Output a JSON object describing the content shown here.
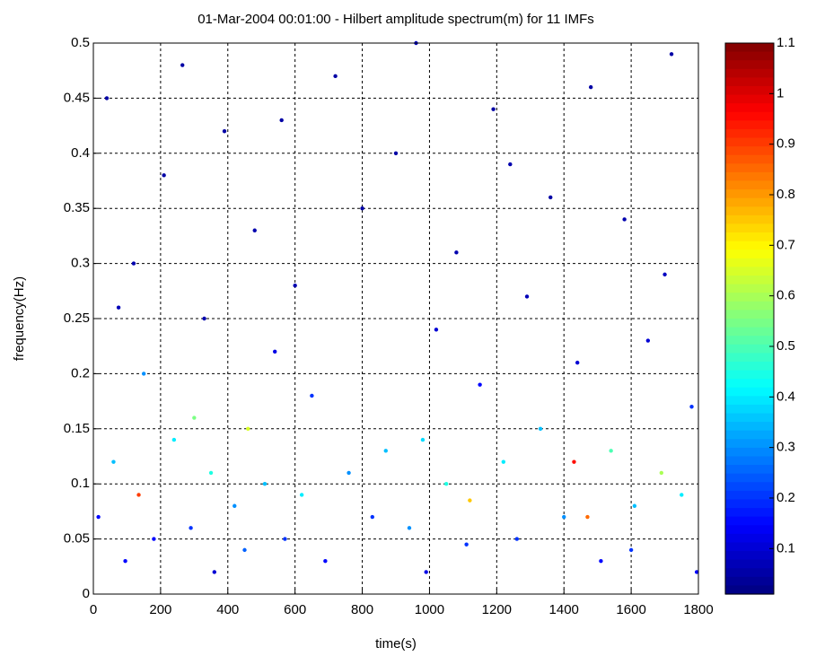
{
  "chart_data": {
    "type": "scatter",
    "title": "01-Mar-2004 00:01:00 - Hilbert amplitude spectrum(m) for 11 IMFs",
    "xlabel": "time(s)",
    "ylabel": "frequency(Hz)",
    "x": [
      15,
      40,
      60,
      95,
      120,
      135,
      150,
      180,
      210,
      240,
      265,
      290,
      300,
      330,
      360,
      390,
      420,
      450,
      460,
      480,
      510,
      540,
      570,
      600,
      620,
      650,
      690,
      720,
      760,
      800,
      830,
      870,
      900,
      940,
      960,
      990,
      1020,
      1050,
      1080,
      1110,
      1120,
      1150,
      1190,
      1220,
      1260,
      1290,
      1330,
      1360,
      1400,
      1430,
      1440,
      1470,
      1480,
      1510,
      1540,
      1580,
      1610,
      1650,
      1690,
      1720,
      1750,
      1780,
      1795,
      75,
      350,
      560,
      980,
      1240,
      1600,
      1700
    ],
    "y": [
      0.07,
      0.45,
      0.12,
      0.03,
      0.3,
      0.09,
      0.2,
      0.05,
      0.38,
      0.14,
      0.48,
      0.06,
      0.16,
      0.25,
      0.02,
      0.42,
      0.08,
      0.04,
      0.15,
      0.33,
      0.1,
      0.22,
      0.05,
      0.28,
      0.09,
      0.18,
      0.03,
      0.47,
      0.11,
      0.35,
      0.07,
      0.13,
      0.4,
      0.06,
      0.5,
      0.02,
      0.24,
      0.1,
      0.31,
      0.045,
      0.085,
      0.19,
      0.44,
      0.12,
      0.05,
      0.27,
      0.15,
      0.36,
      0.07,
      0.12,
      0.21,
      0.07,
      0.46,
      0.03,
      0.13,
      0.34,
      0.08,
      0.23,
      0.11,
      0.49,
      0.09,
      0.17,
      0.02,
      0.26,
      0.11,
      0.43,
      0.14,
      0.39,
      0.04,
      0.29
    ],
    "amplitude": [
      0.15,
      0.05,
      0.35,
      0.15,
      0.06,
      0.9,
      0.3,
      0.15,
      0.05,
      0.4,
      0.05,
      0.2,
      0.55,
      0.06,
      0.1,
      0.05,
      0.3,
      0.25,
      0.65,
      0.06,
      0.35,
      0.12,
      0.2,
      0.06,
      0.4,
      0.2,
      0.15,
      0.05,
      0.3,
      0.05,
      0.2,
      0.35,
      0.05,
      0.3,
      0.08,
      0.12,
      0.1,
      0.45,
      0.06,
      0.2,
      0.75,
      0.15,
      0.05,
      0.4,
      0.2,
      0.07,
      0.35,
      0.05,
      0.3,
      0.95,
      0.1,
      0.85,
      0.05,
      0.15,
      0.5,
      0.06,
      0.35,
      0.1,
      0.6,
      0.05,
      0.4,
      0.2,
      0.15,
      0.07,
      0.45,
      0.05,
      0.38,
      0.06,
      0.2,
      0.08
    ],
    "xlim": [
      0,
      1800
    ],
    "ylim": [
      0,
      0.5
    ],
    "xticks": [
      0,
      200,
      400,
      600,
      800,
      1000,
      1200,
      1400,
      1600,
      1800
    ],
    "yticks": [
      0,
      0.05,
      0.1,
      0.15,
      0.2,
      0.25,
      0.3,
      0.35,
      0.4,
      0.45,
      0.5
    ],
    "clim": [
      0.01,
      1.1
    ],
    "cticks": [
      0.1,
      0.2,
      0.3,
      0.4,
      0.5,
      0.6,
      0.7,
      0.8,
      0.9,
      1,
      1.1
    ],
    "colormap": "jet",
    "grid": true
  }
}
